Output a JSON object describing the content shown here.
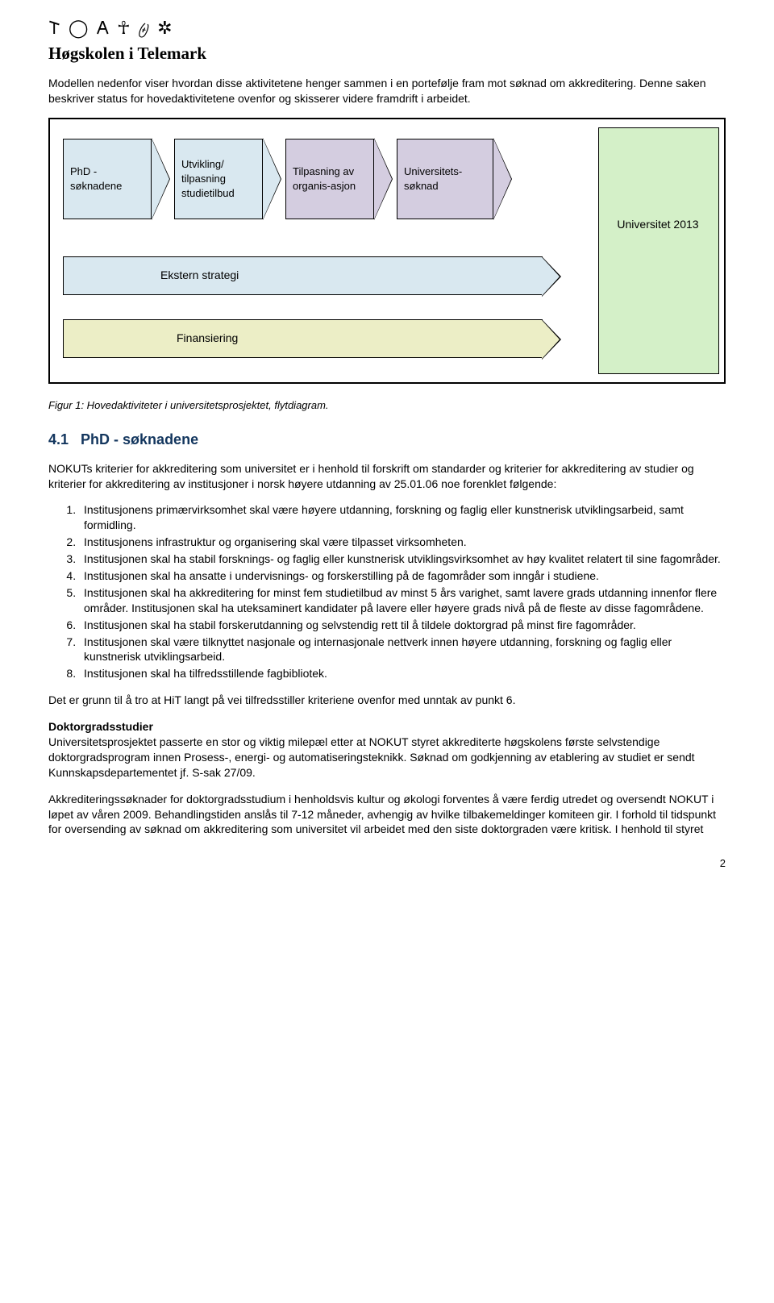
{
  "header": {
    "logo_glyphs": "𐌕 ◯ 𐌀 ☥ 𐤈 ✲",
    "institution": "Høgskolen i Telemark"
  },
  "intro": "Modellen nedenfor viser hvordan disse aktivitetene henger sammen i en portefølje fram mot søknad om akkreditering. Denne saken beskriver status for hovedaktivitetene ovenfor og skisserer videre framdrift i arbeidet.",
  "diagram": {
    "chevrons": [
      {
        "label": "PhD - søknadene",
        "bg": "#d9e8f0"
      },
      {
        "label": "Utvikling/ tilpasning studietilbud",
        "bg": "#d9e8f0"
      },
      {
        "label": "Tilpasning av organis-asjon",
        "bg": "#d4cde0"
      },
      {
        "label": "Universitets-søknad",
        "bg": "#d4cde0"
      }
    ],
    "universitet_box": {
      "label": "Universitet 2013",
      "bg": "#d4f0c8"
    },
    "strategy_bar": {
      "label": "Ekstern strategi",
      "bg": "#d9e8f0"
    },
    "finance_bar": {
      "label": "Finansiering",
      "bg": "#eceec6"
    },
    "border_color": "#000000"
  },
  "caption": "Figur 1: Hovedaktiviteter i universitetsprosjektet, flytdiagram.",
  "section": {
    "number": "4.1",
    "title": "PhD - søknadene",
    "color": "#13365e"
  },
  "nokut_para": "NOKUTs kriterier for akkreditering som universitet er i henhold til forskrift om standarder og kriterier for akkreditering av studier og kriterier for akkreditering av institusjoner i norsk høyere utdanning av 25.01.06 noe forenklet følgende:",
  "criteria": [
    "Institusjonens primærvirksomhet skal være høyere utdanning, forskning og faglig eller kunstnerisk utviklingsarbeid, samt formidling.",
    "Institusjonens infrastruktur og organisering skal være tilpasset virksomheten.",
    "Institusjonen skal ha stabil forsknings- og faglig eller kunstnerisk utviklingsvirksomhet av høy kvalitet relatert til sine fagområder.",
    "Institusjonen skal ha ansatte i undervisnings- og forskerstilling på de fagområder som inngår i studiene.",
    "Institusjonen skal ha akkreditering for minst fem studietilbud av minst 5 års varighet, samt lavere grads utdanning innenfor flere områder. Institusjonen skal ha uteksaminert kandidater på lavere eller høyere grads nivå på de fleste av disse fagområdene.",
    "Institusjonen skal ha stabil forskerutdanning og selvstendig rett til å tildele doktorgrad på minst fire fagområder.",
    "Institusjonen skal være tilknyttet nasjonale og internasjonale nettverk innen høyere utdanning, forskning og faglig eller kunstnerisk utviklingsarbeid.",
    "Institusjonen skal ha tilfredsstillende fagbibliotek."
  ],
  "followup": "Det er grunn til å tro at HiT langt på vei tilfredsstiller kriteriene ovenfor med unntak av punkt 6.",
  "doktor_heading": "Doktorgradsstudier",
  "doktor_para": "Universitetsprosjektet passerte en stor og viktig milepæl etter at NOKUT styret akkrediterte høgskolens første selvstendige doktorgradsprogram innen Prosess-, energi- og automatiseringsteknikk.  Søknad om godkjenning av etablering av studiet er sendt Kunnskapsdepartementet jf. S-sak 27/09.",
  "akk_para": "Akkrediteringssøknader for doktorgradsstudium i henholdsvis kultur og økologi forventes å være ferdig utredet og oversendt NOKUT i løpet av våren 2009. Behandlingstiden anslås til 7-12 måneder, avhengig av hvilke tilbakemeldinger komiteen gir. I forhold til tidspunkt for oversending av søknad om akkreditering som universitet vil arbeidet med den siste doktorgraden være kritisk. I henhold til styret",
  "pagenum": "2"
}
